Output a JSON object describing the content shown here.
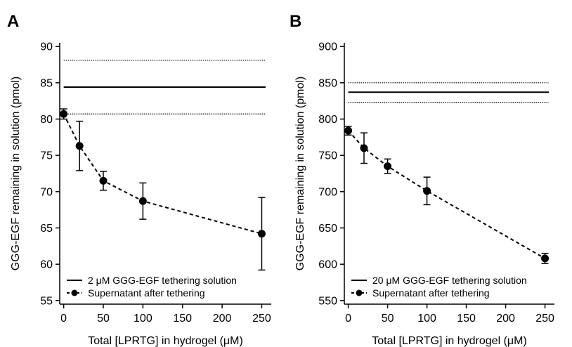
{
  "chart_data": [
    {
      "type": "scatter",
      "panel": "A",
      "xlabel": "Total [LPRTG] in hydrogel (μM)",
      "ylabel": "GGG-EGF remaining in solution (pmol)",
      "xlim": [
        -5,
        262
      ],
      "ylim": [
        54.5,
        90.5
      ],
      "xticks": [
        0,
        50,
        100,
        150,
        200,
        250
      ],
      "yticks": [
        55,
        60,
        65,
        70,
        75,
        80,
        85,
        90
      ],
      "reference": {
        "name": "2 μM GGG-EGF tethering solution",
        "value": 84.4,
        "lower": 80.7,
        "upper": 88.1
      },
      "series": [
        {
          "name": "Supernatant after tethering",
          "x": [
            0,
            20,
            50,
            100,
            250
          ],
          "y": [
            80.7,
            76.3,
            71.5,
            68.7,
            64.2
          ],
          "err": [
            0.7,
            3.4,
            1.3,
            2.5,
            5.0
          ]
        }
      ],
      "legend": "bottom-left",
      "grid": false
    },
    {
      "type": "scatter",
      "panel": "B",
      "xlabel": "Total [LPRTG] in hydrogel (μM)",
      "ylabel": "GGG-EGF remaining in solution (pmol)",
      "xlim": [
        -5,
        262
      ],
      "ylim": [
        545,
        905
      ],
      "xticks": [
        0,
        50,
        100,
        150,
        200,
        250
      ],
      "yticks": [
        550,
        600,
        650,
        700,
        750,
        800,
        850,
        900
      ],
      "reference": {
        "name": "20 μM GGG-EGF tethering solution",
        "value": 837,
        "lower": 823,
        "upper": 850
      },
      "series": [
        {
          "name": "Supernatant after tethering",
          "x": [
            0,
            20,
            50,
            100,
            250
          ],
          "y": [
            784,
            760,
            735,
            701,
            608
          ],
          "err": [
            6,
            21,
            10,
            19,
            7
          ]
        }
      ],
      "legend": "bottom-left",
      "grid": false
    }
  ]
}
